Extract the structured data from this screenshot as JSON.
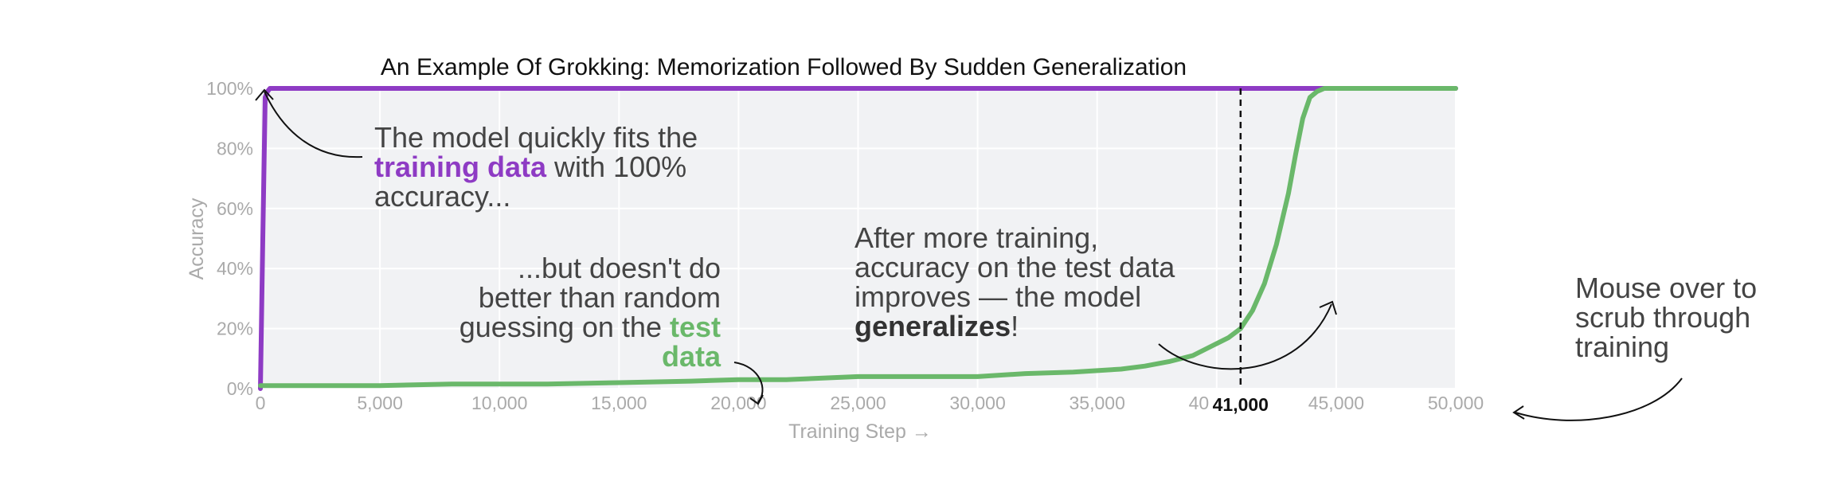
{
  "chart_data": {
    "type": "line",
    "title": "An Example Of Grokking: Memorization Followed By Sudden Generalization",
    "xlabel": "Training Step →",
    "ylabel": "Accuracy",
    "xlim": [
      0,
      50000
    ],
    "ylim": [
      0,
      100
    ],
    "x_ticks": [
      {
        "value": 0,
        "label": "0"
      },
      {
        "value": 5000,
        "label": "5,000"
      },
      {
        "value": 10000,
        "label": "10,000"
      },
      {
        "value": 15000,
        "label": "15,000"
      },
      {
        "value": 20000,
        "label": "20,000"
      },
      {
        "value": 25000,
        "label": "25,000"
      },
      {
        "value": 30000,
        "label": "30,000"
      },
      {
        "value": 35000,
        "label": "35,000"
      },
      {
        "value": 40000,
        "label": "40,000"
      },
      {
        "value": 45000,
        "label": "45,000"
      },
      {
        "value": 50000,
        "label": "50,000"
      }
    ],
    "y_ticks": [
      {
        "value": 0,
        "label": "0%"
      },
      {
        "value": 20,
        "label": "20%"
      },
      {
        "value": 40,
        "label": "40%"
      },
      {
        "value": 60,
        "label": "60%"
      },
      {
        "value": 80,
        "label": "80%"
      },
      {
        "value": 100,
        "label": "100%"
      }
    ],
    "grid": true,
    "marker": {
      "x": 41000,
      "label": "41,000"
    },
    "series": [
      {
        "color": "#8e3bc4",
        "x": [
          0,
          100,
          200,
          300,
          400,
          600,
          1000,
          5000,
          10000,
          20000,
          30000,
          40000,
          45000,
          50000
        ],
        "y": [
          0,
          50,
          97,
          99,
          100,
          100,
          100,
          100,
          100,
          100,
          100,
          100,
          100,
          100
        ]
      },
      {
        "color": "#6ab86a",
        "x": [
          0,
          2000,
          5000,
          8000,
          10000,
          12000,
          15000,
          18000,
          20000,
          22000,
          25000,
          28000,
          30000,
          32000,
          34000,
          35000,
          36000,
          37000,
          38000,
          39000,
          40000,
          40500,
          41000,
          41500,
          42000,
          42500,
          43000,
          43300,
          43600,
          43900,
          44200,
          44500,
          45000,
          47000,
          50000
        ],
        "y": [
          1,
          1,
          1,
          1.5,
          1.5,
          1.5,
          2,
          2.5,
          3,
          3,
          4,
          4,
          4,
          5,
          5.5,
          6,
          6.5,
          7.5,
          9,
          11,
          15,
          17,
          20,
          26,
          35,
          48,
          65,
          78,
          90,
          97,
          99,
          100,
          100,
          100,
          100
        ]
      }
    ]
  },
  "annotations": {
    "train_fit": {
      "line1": "The model quickly fits the",
      "emph": "training data",
      "rest": " with 100%",
      "line3": "accuracy..."
    },
    "test_random": {
      "line1": "...but doesn't do",
      "line2": "better than random",
      "line3a": "guessing on the ",
      "emph3": "test",
      "emph4": "data"
    },
    "generalize": {
      "line1": "After more training,",
      "line2": "accuracy on the test data",
      "line3": "improves — the model",
      "emph": "generalizes",
      "end": "!"
    },
    "mouse_hint": {
      "line1": "Mouse over to",
      "line2": "scrub through",
      "line3": "training"
    }
  }
}
